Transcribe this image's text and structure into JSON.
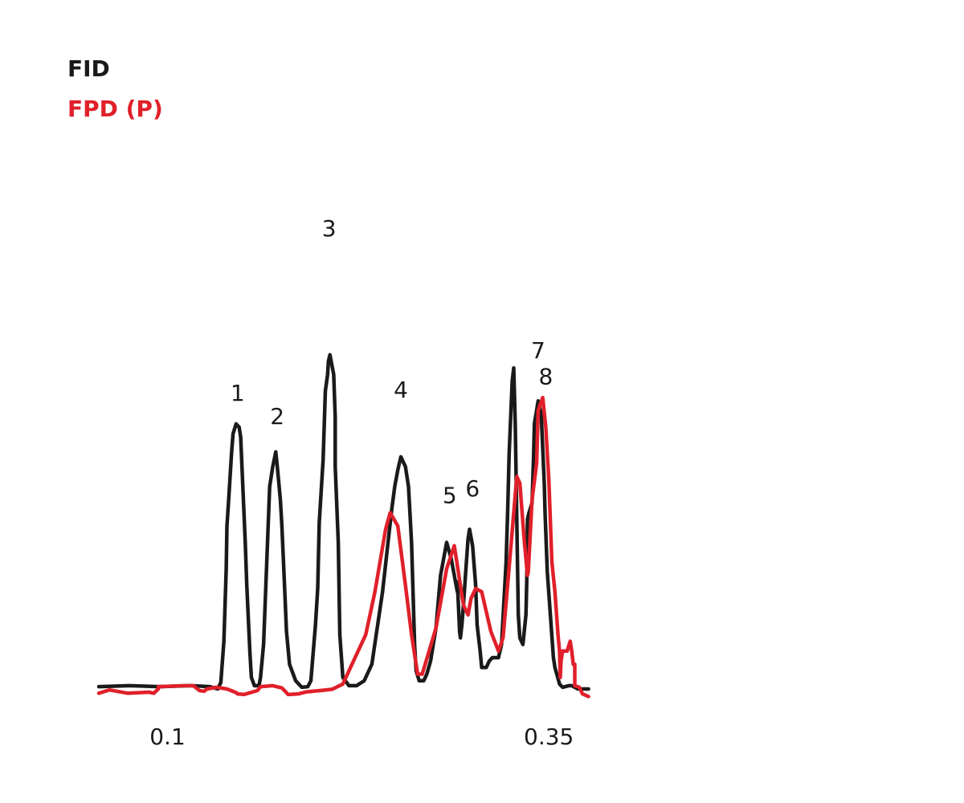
{
  "chart_data": {
    "type": "line",
    "xlabel": "",
    "ylabel": "",
    "x_ticks": [
      {
        "value": 0.1,
        "label": "0.1"
      },
      {
        "value": 0.35,
        "label": "0.35"
      }
    ],
    "xlim": [
      0.055,
      0.55
    ],
    "ylim": [
      0,
      100
    ],
    "grid": false,
    "legend_placement": "top-left",
    "colors": {
      "fid": "#1a1a1a",
      "fpd": "#e0202a"
    },
    "series": [
      {
        "name": "FID",
        "key": "fid",
        "points": [
          [
            0.055,
            1.2
          ],
          [
            0.075,
            1.5
          ],
          [
            0.095,
            1.2
          ],
          [
            0.115,
            1.5
          ],
          [
            0.128,
            1.2
          ],
          [
            0.133,
            0.5
          ],
          [
            0.135,
            2.5
          ],
          [
            0.137,
            15
          ],
          [
            0.1385,
            37
          ],
          [
            0.139,
            50
          ],
          [
            0.14,
            57
          ],
          [
            0.142,
            72
          ],
          [
            0.143,
            78
          ],
          [
            0.145,
            81
          ],
          [
            0.147,
            80
          ],
          [
            0.148,
            77
          ],
          [
            0.151,
            45
          ],
          [
            0.152,
            32
          ],
          [
            0.154,
            12
          ],
          [
            0.155,
            4
          ],
          [
            0.157,
            1.5
          ],
          [
            0.16,
            1.5
          ],
          [
            0.161,
            4
          ],
          [
            0.163,
            14
          ],
          [
            0.165,
            38
          ],
          [
            0.166,
            50
          ],
          [
            0.167,
            62
          ],
          [
            0.169,
            68
          ],
          [
            0.171,
            72.5
          ],
          [
            0.172,
            68
          ],
          [
            0.174,
            58
          ],
          [
            0.175,
            50
          ],
          [
            0.177,
            29
          ],
          [
            0.178,
            18
          ],
          [
            0.18,
            8
          ],
          [
            0.184,
            3
          ],
          [
            0.188,
            1
          ],
          [
            0.192,
            1.2
          ],
          [
            0.194,
            3
          ],
          [
            0.197,
            20
          ],
          [
            0.1985,
            31
          ],
          [
            0.1995,
            51
          ],
          [
            0.202,
            70
          ],
          [
            0.2035,
            91
          ],
          [
            0.205,
            96
          ],
          [
            0.2055,
            100
          ],
          [
            0.2065,
            102
          ],
          [
            0.209,
            96
          ],
          [
            0.21,
            83
          ],
          [
            0.21,
            68
          ],
          [
            0.212,
            45
          ],
          [
            0.213,
            17
          ],
          [
            0.215,
            4
          ],
          [
            0.219,
            1.5
          ],
          [
            0.224,
            1.5
          ],
          [
            0.229,
            3
          ],
          [
            0.234,
            8
          ],
          [
            0.241,
            30
          ],
          [
            0.247,
            55
          ],
          [
            0.249,
            62
          ],
          [
            0.251,
            67
          ],
          [
            0.253,
            71
          ],
          [
            0.256,
            68
          ],
          [
            0.258,
            62
          ],
          [
            0.26,
            45
          ],
          [
            0.262,
            14
          ],
          [
            0.263,
            6
          ],
          [
            0.265,
            3
          ],
          [
            0.268,
            3
          ],
          [
            0.27,
            5
          ],
          [
            0.2725,
            9
          ],
          [
            0.276,
            19
          ],
          [
            0.279,
            35
          ],
          [
            0.283,
            45
          ],
          [
            0.286,
            40
          ],
          [
            0.288,
            35
          ],
          [
            0.29,
            30
          ],
          [
            0.29,
            33
          ],
          [
            0.291,
            23
          ],
          [
            0.2915,
            18
          ],
          [
            0.292,
            16
          ],
          [
            0.293,
            20
          ],
          [
            0.294,
            26
          ],
          [
            0.2955,
            36
          ],
          [
            0.297,
            46
          ],
          [
            0.298,
            49
          ],
          [
            0.3,
            44
          ],
          [
            0.302,
            32
          ],
          [
            0.303,
            20
          ],
          [
            0.305,
            12
          ],
          [
            0.306,
            7
          ],
          [
            0.309,
            7
          ],
          [
            0.311,
            9
          ],
          [
            0.313,
            10
          ],
          [
            0.317,
            10
          ],
          [
            0.319,
            14
          ],
          [
            0.322,
            39
          ],
          [
            0.323,
            54
          ],
          [
            0.324,
            72
          ],
          [
            0.326,
            94
          ],
          [
            0.327,
            98
          ],
          [
            0.328,
            81
          ],
          [
            0.33,
            23
          ],
          [
            0.331,
            16
          ],
          [
            0.333,
            14
          ],
          [
            0.335,
            23
          ],
          [
            0.3355,
            33
          ],
          [
            0.336,
            52
          ],
          [
            0.337,
            54
          ],
          [
            0.339,
            57
          ],
          [
            0.34,
            71
          ],
          [
            0.3405,
            81
          ],
          [
            0.343,
            88
          ],
          [
            0.345,
            84
          ],
          [
            0.347,
            63
          ],
          [
            0.3475,
            54
          ],
          [
            0.349,
            36
          ],
          [
            0.351,
            23
          ],
          [
            0.353,
            10
          ],
          [
            0.354,
            7
          ],
          [
            0.357,
            2
          ],
          [
            0.359,
            1
          ],
          [
            0.363,
            1.5
          ],
          [
            0.365,
            1.5
          ],
          [
            0.369,
            0.5
          ],
          [
            0.376,
            0.5
          ]
        ]
      },
      {
        "name": "FPD (P)",
        "key": "fpd",
        "points": [
          [
            0.055,
            -0.8
          ],
          [
            0.062,
            0.2
          ],
          [
            0.074,
            -0.8
          ],
          [
            0.088,
            -0.5
          ],
          [
            0.091,
            -0.8
          ],
          [
            0.094,
            0.5
          ],
          [
            0.094,
            1.2
          ],
          [
            0.111,
            1.5
          ],
          [
            0.117,
            1.5
          ],
          [
            0.121,
            0
          ],
          [
            0.124,
            -0.2
          ],
          [
            0.126,
            0.5
          ],
          [
            0.132,
            1.0
          ],
          [
            0.139,
            0.5
          ],
          [
            0.145,
            -0.6
          ],
          [
            0.146,
            -1.0
          ],
          [
            0.15,
            -1.2
          ],
          [
            0.159,
            0
          ],
          [
            0.161,
            1.2
          ],
          [
            0.169,
            1.5
          ],
          [
            0.175,
            0.8
          ],
          [
            0.178,
            -0.6
          ],
          [
            0.179,
            -1.2
          ],
          [
            0.186,
            -1.0
          ],
          [
            0.191,
            -0.4
          ],
          [
            0.2,
            0
          ],
          [
            0.208,
            0.4
          ],
          [
            0.215,
            2
          ],
          [
            0.222,
            9
          ],
          [
            0.23,
            17
          ],
          [
            0.236,
            30
          ],
          [
            0.243,
            49
          ],
          [
            0.246,
            54
          ],
          [
            0.251,
            50
          ],
          [
            0.256,
            32
          ],
          [
            0.26,
            17
          ],
          [
            0.264,
            5
          ],
          [
            0.267,
            5
          ],
          [
            0.276,
            19
          ],
          [
            0.283,
            37
          ],
          [
            0.288,
            44
          ],
          [
            0.291,
            35
          ],
          [
            0.294,
            26
          ],
          [
            0.297,
            23
          ],
          [
            0.299,
            28
          ],
          [
            0.302,
            31
          ],
          [
            0.306,
            30
          ],
          [
            0.309,
            24
          ],
          [
            0.312,
            18
          ],
          [
            0.317,
            12
          ],
          [
            0.32,
            16
          ],
          [
            0.323,
            32
          ],
          [
            0.329,
            65
          ],
          [
            0.331,
            63
          ],
          [
            0.334,
            45
          ],
          [
            0.336,
            35
          ],
          [
            0.3365,
            36
          ],
          [
            0.339,
            58
          ],
          [
            0.342,
            69
          ],
          [
            0.343,
            85
          ],
          [
            0.346,
            89
          ],
          [
            0.348,
            80
          ],
          [
            0.35,
            64
          ],
          [
            0.352,
            39
          ],
          [
            0.354,
            30
          ],
          [
            0.356,
            17
          ],
          [
            0.357,
            12
          ],
          [
            0.3575,
            4
          ],
          [
            0.358,
            9
          ],
          [
            0.359,
            12
          ],
          [
            0.362,
            12
          ],
          [
            0.364,
            15
          ],
          [
            0.365,
            12
          ],
          [
            0.366,
            8
          ],
          [
            0.367,
            8
          ],
          [
            0.367,
            1.5
          ],
          [
            0.37,
            1
          ],
          [
            0.372,
            -1
          ],
          [
            0.376,
            -1.8
          ]
        ]
      }
    ],
    "peak_labels": [
      {
        "text": "1",
        "x": 0.146,
        "y": 88
      },
      {
        "text": "2",
        "x": 0.172,
        "y": 81
      },
      {
        "text": "3",
        "x": 0.206,
        "y": 138
      },
      {
        "text": "4",
        "x": 0.253,
        "y": 89
      },
      {
        "text": "5",
        "x": 0.285,
        "y": 57
      },
      {
        "text": "6",
        "x": 0.3,
        "y": 59
      },
      {
        "text": "7",
        "x": 0.343,
        "y": 101
      },
      {
        "text": "8",
        "x": 0.348,
        "y": 93
      }
    ]
  },
  "legend": {
    "fid_label": "FID",
    "fpd_label": "FPD (P)"
  }
}
